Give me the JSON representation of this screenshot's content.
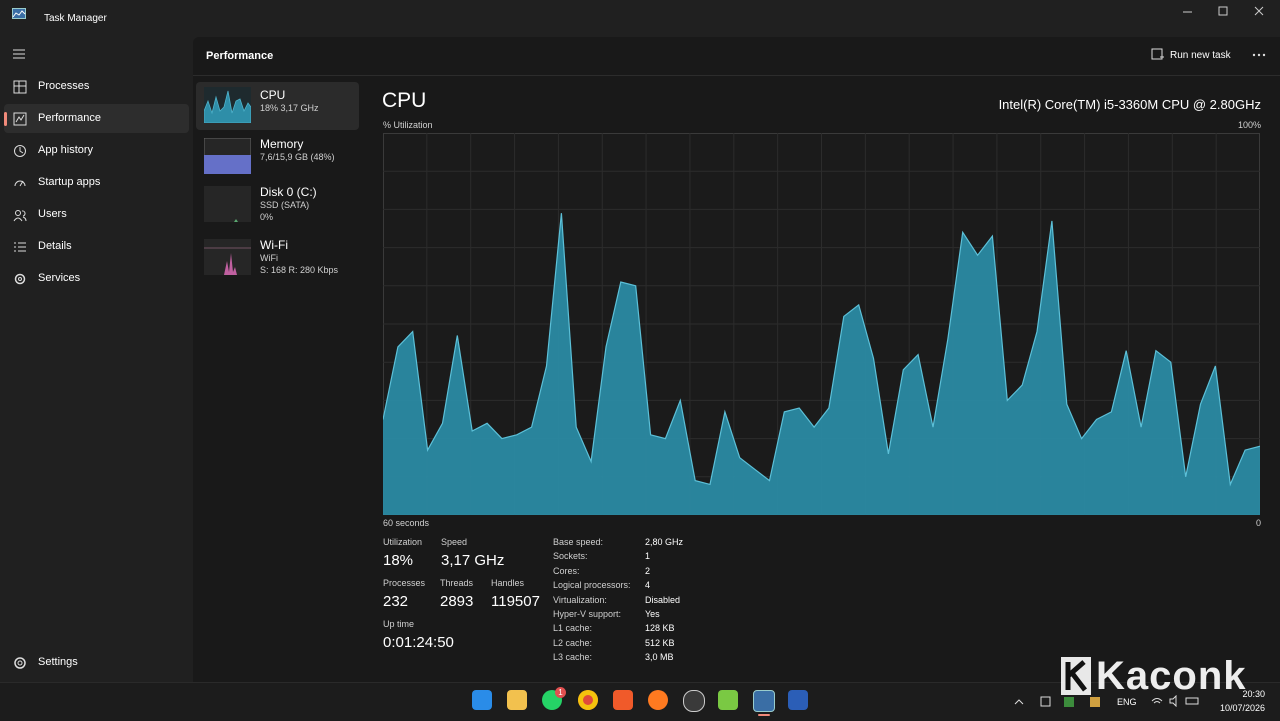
{
  "window": {
    "title": "Task Manager"
  },
  "nav": [
    "Processes",
    "Performance",
    "App history",
    "Startup apps",
    "Users",
    "Details",
    "Services"
  ],
  "settings": "Settings",
  "header": {
    "title": "Performance",
    "action": "Run new task"
  },
  "devices": [
    {
      "name": "CPU",
      "lines": [
        "18% 3,17 GHz"
      ]
    },
    {
      "name": "Memory",
      "lines": [
        "7,6/15,9 GB (48%)"
      ]
    },
    {
      "name": "Disk 0 (C:)",
      "lines": [
        "SSD (SATA)",
        "0%"
      ]
    },
    {
      "name": "Wi-Fi",
      "lines": [
        "WiFi",
        "S: 168 R: 280 Kbps"
      ]
    }
  ],
  "cpu": {
    "title": "CPU",
    "model": "Intel(R) Core(TM) i5-3360M CPU @ 2.80GHz",
    "graph": {
      "y_label": "% Utilization",
      "top_label": "100%",
      "x_label": "60 seconds",
      "bottom_label": "0",
      "ylim": [
        0,
        100
      ],
      "values": [
        25,
        44,
        48,
        17,
        24,
        47,
        22,
        24,
        20,
        21,
        23,
        39,
        79,
        23,
        14,
        44,
        61,
        60,
        21,
        20,
        30,
        9,
        8,
        27,
        15,
        12,
        9,
        27,
        28,
        23,
        28,
        52,
        55,
        41,
        16,
        38,
        42,
        23,
        46,
        74,
        68,
        73,
        30,
        34,
        48,
        77,
        29,
        20,
        25,
        27,
        43,
        23,
        43,
        40,
        10,
        29,
        39,
        8,
        17,
        18
      ]
    },
    "stats": [
      {
        "label": "Utilization",
        "value": "18%"
      },
      {
        "label": "Speed",
        "value": "3,17 GHz"
      },
      {
        "label": "Processes",
        "value": "232"
      },
      {
        "label": "Threads",
        "value": "2893"
      },
      {
        "label": "Handles",
        "value": "119507"
      },
      {
        "label": "Up time",
        "value": "0:01:24:50"
      }
    ],
    "details": [
      [
        "Base speed:",
        "2,80 GHz"
      ],
      [
        "Sockets:",
        "1"
      ],
      [
        "Cores:",
        "2"
      ],
      [
        "Logical processors:",
        "4"
      ],
      [
        "Virtualization:",
        "Disabled"
      ],
      [
        "Hyper-V support:",
        "Yes"
      ],
      [
        "L1 cache:",
        "128 KB"
      ],
      [
        "L2 cache:",
        "512 KB"
      ],
      [
        "L3 cache:",
        "3,0 MB"
      ]
    ]
  },
  "taskbar": {
    "language": "ENG",
    "time": "20:30",
    "date": "10/07/2026",
    "badge": "1"
  },
  "watermark": "Kaconk"
}
